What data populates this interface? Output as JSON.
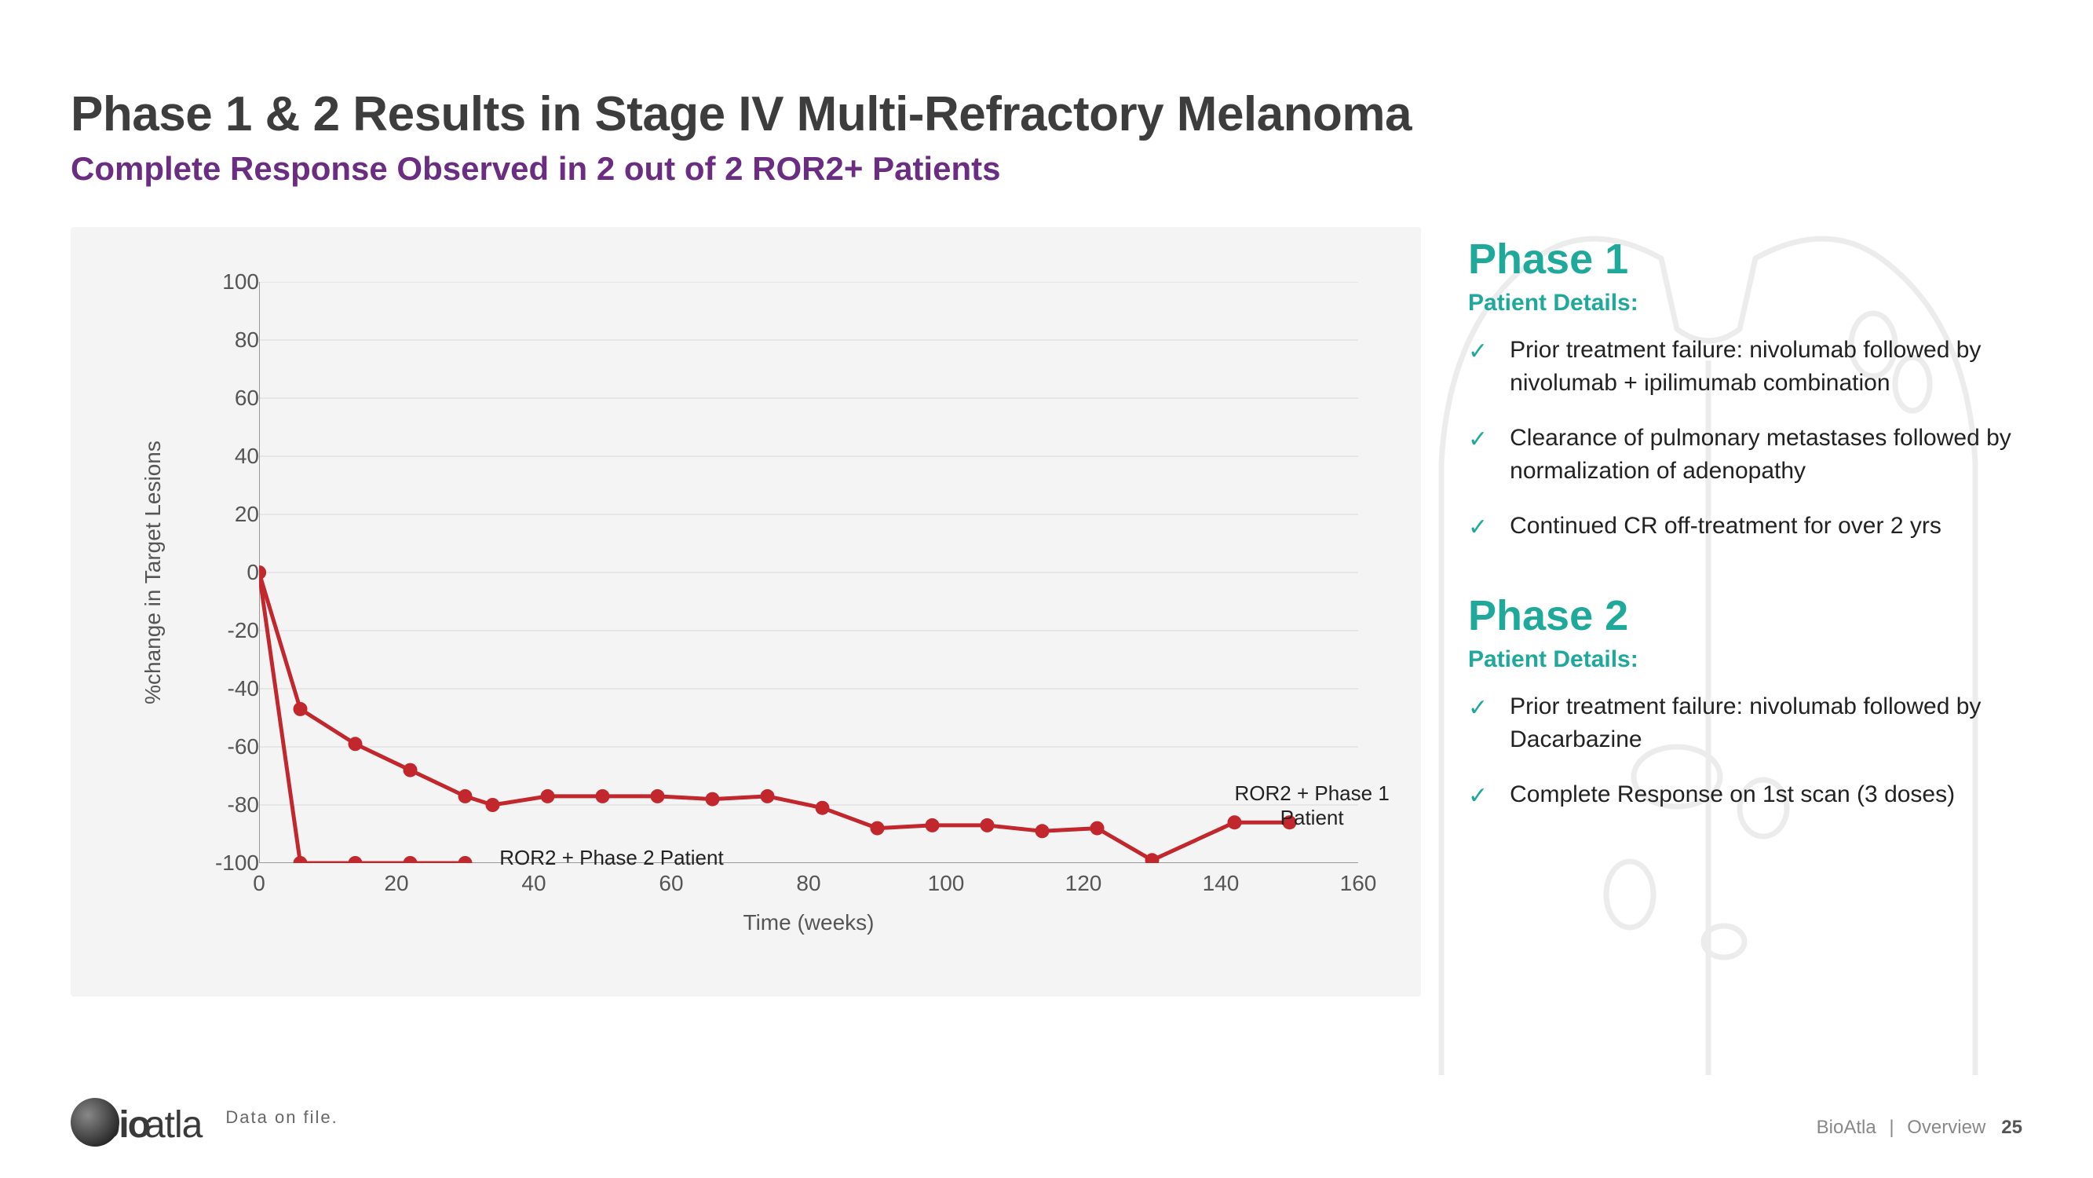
{
  "title": "Phase 1 & 2 Results in Stage IV Multi-Refractory Melanoma",
  "subtitle": "Complete Response Observed in 2 out of 2 ROR2+ Patients",
  "chart": {
    "type": "line",
    "background_color": "#f4f4f4",
    "grid_color": "#d9d9d9",
    "axis_color": "#999999",
    "x_label": "Time (weeks)",
    "y_label": "%change in Target Lesions",
    "xlim": [
      0,
      160
    ],
    "ylim": [
      -100,
      100
    ],
    "xticks": [
      0,
      20,
      40,
      60,
      80,
      100,
      120,
      140,
      160
    ],
    "yticks": [
      -100,
      -80,
      -60,
      -40,
      -20,
      0,
      20,
      40,
      60,
      80,
      100
    ],
    "label_fontsize": 28,
    "tick_fontsize": 28,
    "line_width": 5,
    "marker_radius": 9,
    "series": [
      {
        "name": "ROR2 + Phase 1 Patient",
        "label": "ROR2 + Phase 1\nPatient",
        "label_xy": [
          142,
          -72
        ],
        "color": "#c1272d",
        "x": [
          0,
          6,
          14,
          22,
          30,
          34,
          42,
          50,
          58,
          66,
          74,
          82,
          90,
          98,
          106,
          114,
          122,
          130,
          142,
          150
        ],
        "y": [
          0,
          -47,
          -59,
          -68,
          -77,
          -80,
          -77,
          -77,
          -77,
          -78,
          -77,
          -81,
          -88,
          -87,
          -87,
          -89,
          -88,
          -99,
          -86,
          -86
        ]
      },
      {
        "name": "ROR2 + Phase 2 Patient",
        "label": "ROR2 + Phase 2 Patient",
        "label_xy": [
          35,
          -94
        ],
        "color": "#c1272d",
        "x": [
          0,
          6,
          14,
          22,
          30
        ],
        "y": [
          0,
          -100,
          -100,
          -100,
          -100
        ]
      }
    ]
  },
  "phase1": {
    "heading": "Phase 1",
    "details_heading": "Patient Details:",
    "bullets": [
      "Prior treatment failure: nivolumab followed by nivolumab + ipilimumab combination",
      "Clearance of pulmonary metastases followed by normalization of adenopathy",
      "Continued CR off-treatment for over 2 yrs"
    ]
  },
  "phase2": {
    "heading": "Phase 2",
    "details_heading": "Patient Details:",
    "bullets": [
      "Prior treatment failure: nivolumab followed by Dacarbazine",
      "Complete Response on 1st scan (3 doses)"
    ]
  },
  "footer": {
    "data_on_file": "Data on file.",
    "company": "BioAtla",
    "section": "Overview",
    "page": "25"
  },
  "body_outline_color": "#c9c9c9",
  "checkmark_color": "#1fa99a"
}
